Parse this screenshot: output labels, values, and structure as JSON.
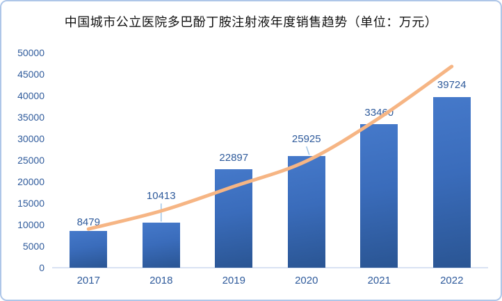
{
  "title": "中国城市公立医院多巴酚丁胺注射液年度销售趋势（单位：万元）",
  "chart_data": {
    "type": "bar",
    "title": "中国城市公立医院多巴酚丁胺注射液年度销售趋势（单位：万元）",
    "unit": "万元",
    "categories": [
      "2017",
      "2018",
      "2019",
      "2020",
      "2021",
      "2022"
    ],
    "series": [
      {
        "name": "bars",
        "type": "bar",
        "values": [
          8479,
          10413,
          22897,
          25925,
          33460,
          39724
        ]
      },
      {
        "name": "trend",
        "type": "line",
        "values": [
          9000,
          13200,
          18900,
          24800,
          34800,
          46800
        ]
      }
    ],
    "data_labels": [
      "8479",
      "10413",
      "22897",
      "25925",
      "33460",
      "39724"
    ],
    "label_center_offsets": [
      12,
      38,
      16,
      24,
      16,
      17
    ],
    "label_leaders": [
      null,
      "vertical",
      null,
      "slant",
      null,
      null
    ],
    "y_ticks": [
      0,
      5000,
      10000,
      15000,
      20000,
      25000,
      30000,
      35000,
      40000,
      45000,
      50000
    ],
    "ylim": [
      0,
      50000
    ],
    "xlabel": "",
    "ylabel": "",
    "grid": false,
    "legend": "none",
    "colors": {
      "bar_top": "#4579ca",
      "bar_bottom": "#2a5593",
      "trend_line": "#f6b584",
      "tick_text": "#2e5a9b",
      "axis_line": "#d9e2f3",
      "leader_line": "#9dc3e6",
      "frame_border": "#aec6e8",
      "title_text": "#111111",
      "background": "#ffffff"
    }
  }
}
